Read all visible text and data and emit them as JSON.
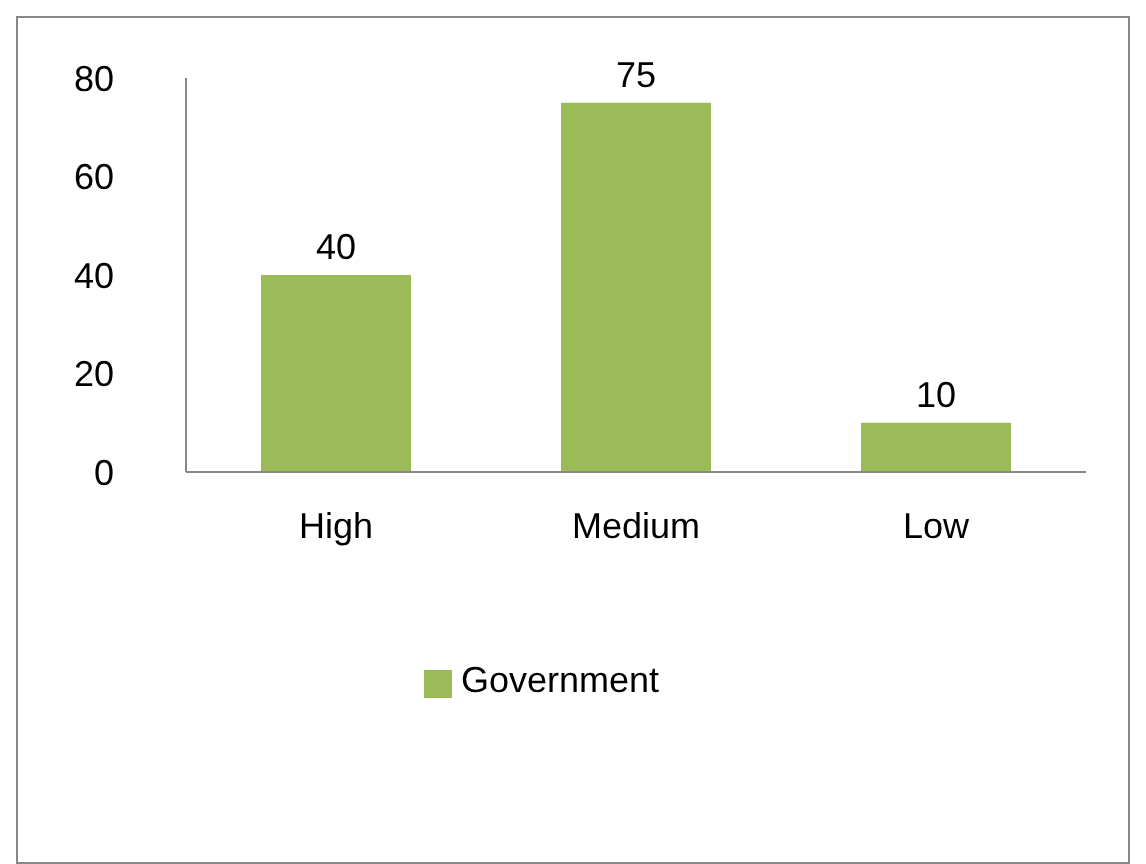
{
  "chart_data": {
    "type": "bar",
    "categories": [
      "High",
      "Medium",
      "Low"
    ],
    "series": [
      {
        "name": "Government",
        "color": "#9bbb59",
        "values": [
          40,
          75,
          10
        ]
      }
    ],
    "ylim": [
      0,
      80
    ],
    "yticks": [
      0,
      20,
      40,
      60,
      80
    ],
    "grid": false,
    "legend": "bottom",
    "data_labels": true
  }
}
